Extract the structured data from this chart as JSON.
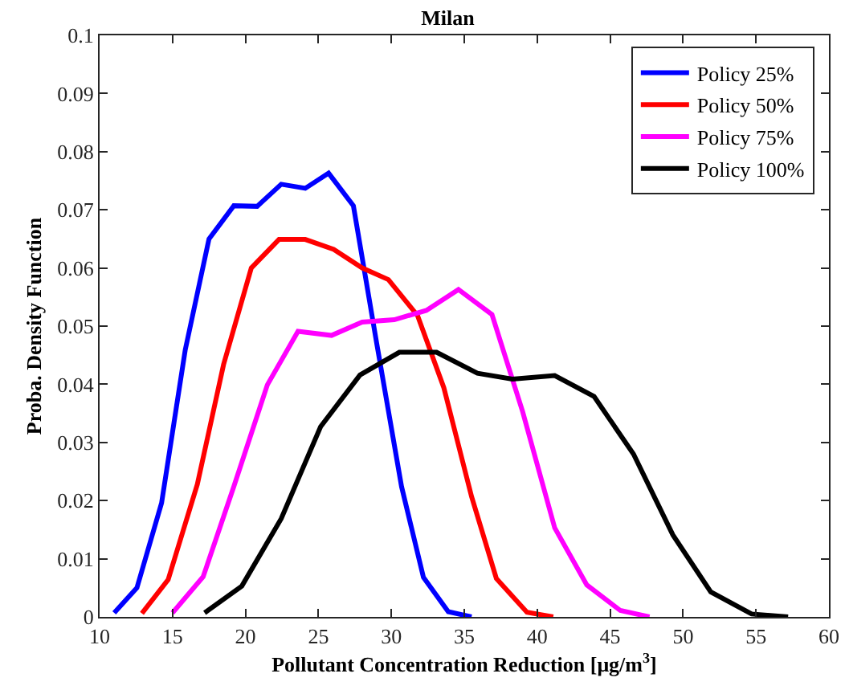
{
  "chart_data": {
    "type": "line",
    "title": "Milan",
    "xlabel": "Pollutant Concentration Reduction [μg/m$^{3}$]",
    "ylabel": "Proba. Density Function",
    "xlim": [
      10,
      60
    ],
    "xticks": [
      10,
      15,
      20,
      25,
      30,
      35,
      40,
      45,
      50,
      55,
      60
    ],
    "ylim": [
      0,
      0.1
    ],
    "yticks": [
      0,
      0.01,
      0.02,
      0.03,
      0.04,
      0.05,
      0.06,
      0.07,
      0.08,
      0.09,
      0.1
    ],
    "grid": false,
    "legend": "top right",
    "marker": "none",
    "line_style": "solid",
    "series": [
      {
        "name": "Policy 25%",
        "color": "#0000ff",
        "x": [
          11.0,
          12.56,
          14.25,
          15.87,
          17.5,
          19.2,
          20.8,
          22.45,
          24.1,
          25.7,
          27.4,
          29.0,
          30.7,
          32.2,
          33.9,
          35.5
        ],
        "values": [
          0.0007,
          0.005,
          0.0196,
          0.0459,
          0.065,
          0.0707,
          0.0706,
          0.0744,
          0.0737,
          0.0763,
          0.0707,
          0.047,
          0.0224,
          0.0068,
          0.0009,
          0
        ]
      },
      {
        "name": "Policy 50%",
        "color": "#ff0000",
        "x": [
          12.9,
          14.7,
          16.7,
          18.5,
          20.4,
          22.3,
          24.1,
          26.05,
          28.0,
          29.8,
          31.8,
          33.6,
          35.5,
          37.2,
          39.3,
          41.1
        ],
        "values": [
          0.0006,
          0.0064,
          0.0228,
          0.0434,
          0.06,
          0.0649,
          0.0649,
          0.0632,
          0.06,
          0.058,
          0.0518,
          0.0394,
          0.0207,
          0.0066,
          0.0008,
          0
        ]
      },
      {
        "name": "Policy 75%",
        "color": "#ff00ff",
        "x": [
          15.0,
          17.1,
          19.2,
          21.5,
          23.6,
          25.9,
          28.0,
          30.2,
          32.4,
          34.6,
          36.9,
          39.0,
          41.2,
          43.4,
          45.7,
          47.7
        ],
        "values": [
          0.0007,
          0.0069,
          0.0224,
          0.0399,
          0.0491,
          0.0484,
          0.0507,
          0.0511,
          0.0527,
          0.0563,
          0.052,
          0.0353,
          0.0153,
          0.0055,
          0.0011,
          0
        ]
      },
      {
        "name": "Policy 100%",
        "color": "#000000",
        "x": [
          17.2,
          19.75,
          22.45,
          25.15,
          27.85,
          30.55,
          33.1,
          35.9,
          38.3,
          41.2,
          43.9,
          46.6,
          49.3,
          51.9,
          54.7,
          57.2
        ],
        "values": [
          0.0007,
          0.0053,
          0.0169,
          0.0327,
          0.0416,
          0.0455,
          0.0455,
          0.0419,
          0.0409,
          0.0415,
          0.0379,
          0.028,
          0.0141,
          0.0043,
          0.0005,
          0
        ]
      }
    ]
  }
}
